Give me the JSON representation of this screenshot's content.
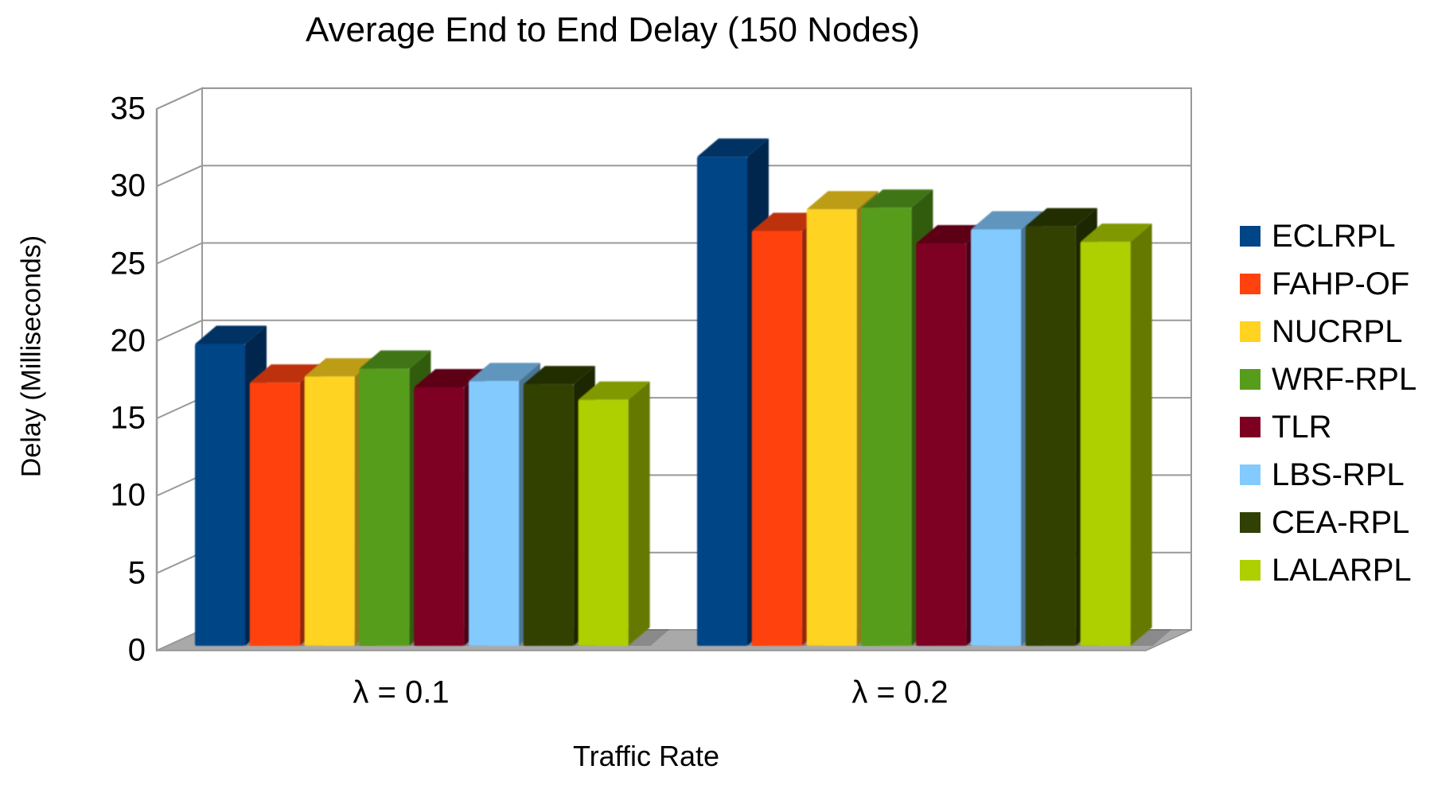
{
  "title": "Average End to End Delay (150 Nodes)",
  "chart_data": {
    "type": "bar",
    "subtype": "3d-grouped-columns",
    "title": "Average End to End Delay (150 Nodes)",
    "xlabel": "Traffic Rate",
    "ylabel": "Delay (Milliseconds)",
    "ylim": [
      0,
      35
    ],
    "y_tick_step": 5,
    "y_ticks": [
      0,
      5,
      10,
      15,
      20,
      25,
      30,
      35
    ],
    "grid": true,
    "legend_position": "right",
    "background": "#ffffff",
    "wall_color": "#ffffff",
    "floor_color": "#a9a9a9",
    "grid_color": "#999999",
    "categories": [
      "λ = 0.1",
      "λ = 0.2"
    ],
    "series": [
      {
        "name": "ECLRPL",
        "color": "#004586",
        "values": [
          19.5,
          31.6
        ]
      },
      {
        "name": "FAHP-OF",
        "color": "#FF420E",
        "values": [
          17.0,
          26.8
        ]
      },
      {
        "name": "NUCRPL",
        "color": "#FFD320",
        "values": [
          17.4,
          28.2
        ]
      },
      {
        "name": "WRF-RPL",
        "color": "#579D1C",
        "values": [
          17.9,
          28.3
        ]
      },
      {
        "name": "TLR",
        "color": "#7E0021",
        "values": [
          16.7,
          26.0
        ]
      },
      {
        "name": "LBS-RPL",
        "color": "#83CAFF",
        "values": [
          17.1,
          26.9
        ]
      },
      {
        "name": "CEA-RPL",
        "color": "#314004",
        "values": [
          16.9,
          27.1
        ]
      },
      {
        "name": "LALARPL",
        "color": "#AECF00",
        "values": [
          15.9,
          26.1
        ]
      }
    ]
  }
}
